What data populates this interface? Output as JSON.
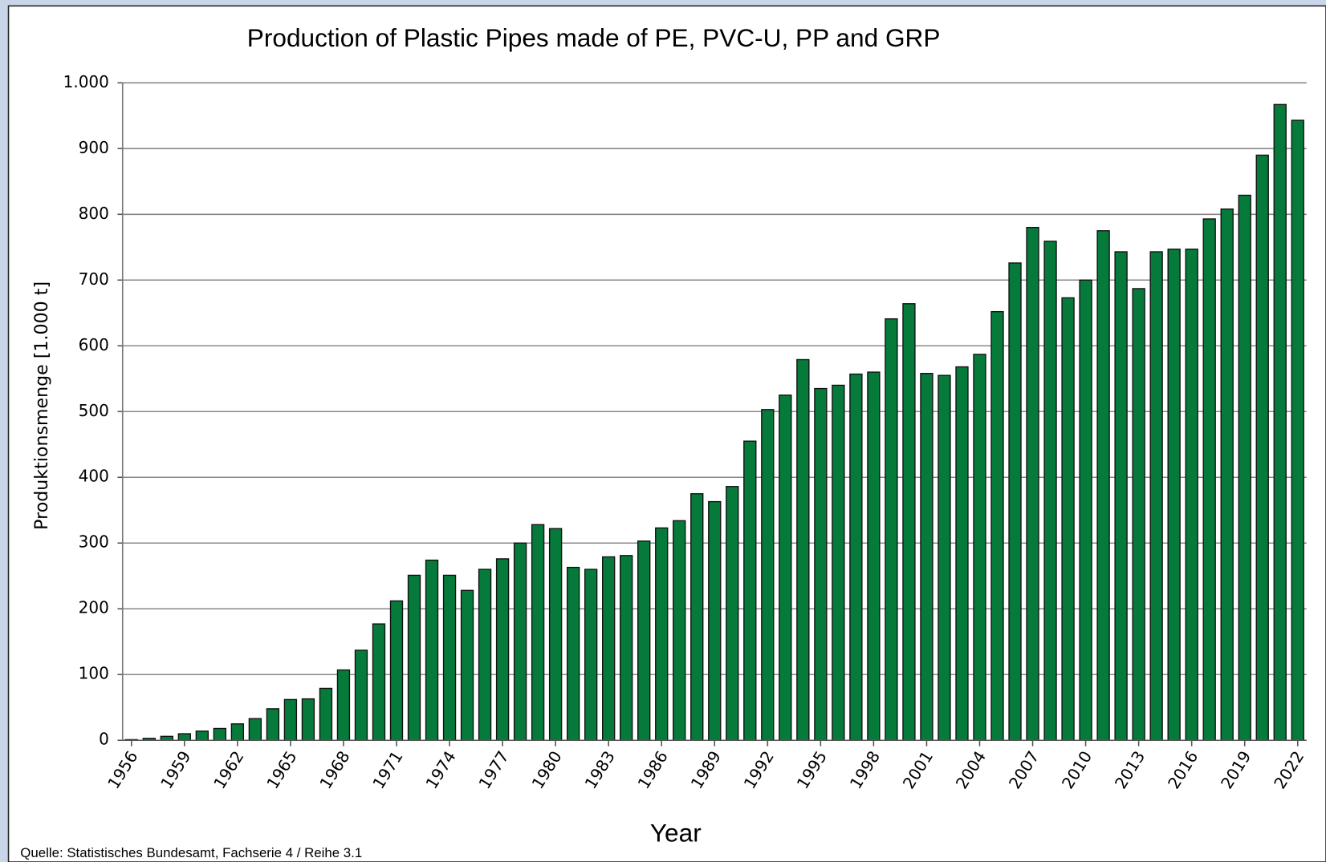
{
  "chart_data": {
    "type": "bar",
    "title": "Production of Plastic Pipes made of PE, PVC-U, PP and GRP",
    "y_label": "Produktionsmenge [1.000 t]",
    "x_label": "Year",
    "source": "Quelle: Statistisches Bundesamt, Fachserie 4 / Reihe 3.1",
    "categories": [
      "1956",
      null,
      null,
      "1959",
      null,
      null,
      "1962",
      null,
      null,
      "1965",
      null,
      null,
      "1968",
      null,
      null,
      "1971",
      null,
      null,
      "1974",
      null,
      null,
      "1977",
      null,
      null,
      "1980",
      null,
      null,
      "1983",
      null,
      null,
      "1986",
      null,
      null,
      "1989",
      null,
      null,
      "1992",
      null,
      null,
      "1995",
      null,
      null,
      "1998",
      null,
      null,
      "2001",
      null,
      null,
      "2004",
      null,
      null,
      "2007",
      null,
      null,
      "2010",
      null,
      null,
      "2013",
      null,
      null,
      "2016",
      null,
      null,
      "2019",
      null,
      null,
      "2022"
    ],
    "values": [
      1,
      3,
      6,
      10,
      14,
      18,
      25,
      33,
      48,
      62,
      63,
      79,
      107,
      137,
      177,
      212,
      251,
      274,
      251,
      228,
      260,
      276,
      300,
      328,
      322,
      263,
      260,
      279,
      281,
      303,
      323,
      334,
      375,
      363,
      386,
      455,
      503,
      525,
      579,
      535,
      540,
      557,
      560,
      641,
      664,
      558,
      555,
      568,
      587,
      652,
      726,
      780,
      759,
      673,
      700,
      775,
      743,
      687,
      743,
      747,
      747,
      793,
      808,
      829,
      890,
      967,
      943
    ],
    "color": "#067a3b",
    "ylim": [
      0,
      1000
    ],
    "yticks": [
      0,
      100,
      200,
      300,
      400,
      500,
      600,
      700,
      800,
      900,
      {
        "value": 1000,
        "label": "1.000"
      }
    ],
    "grid": true
  }
}
